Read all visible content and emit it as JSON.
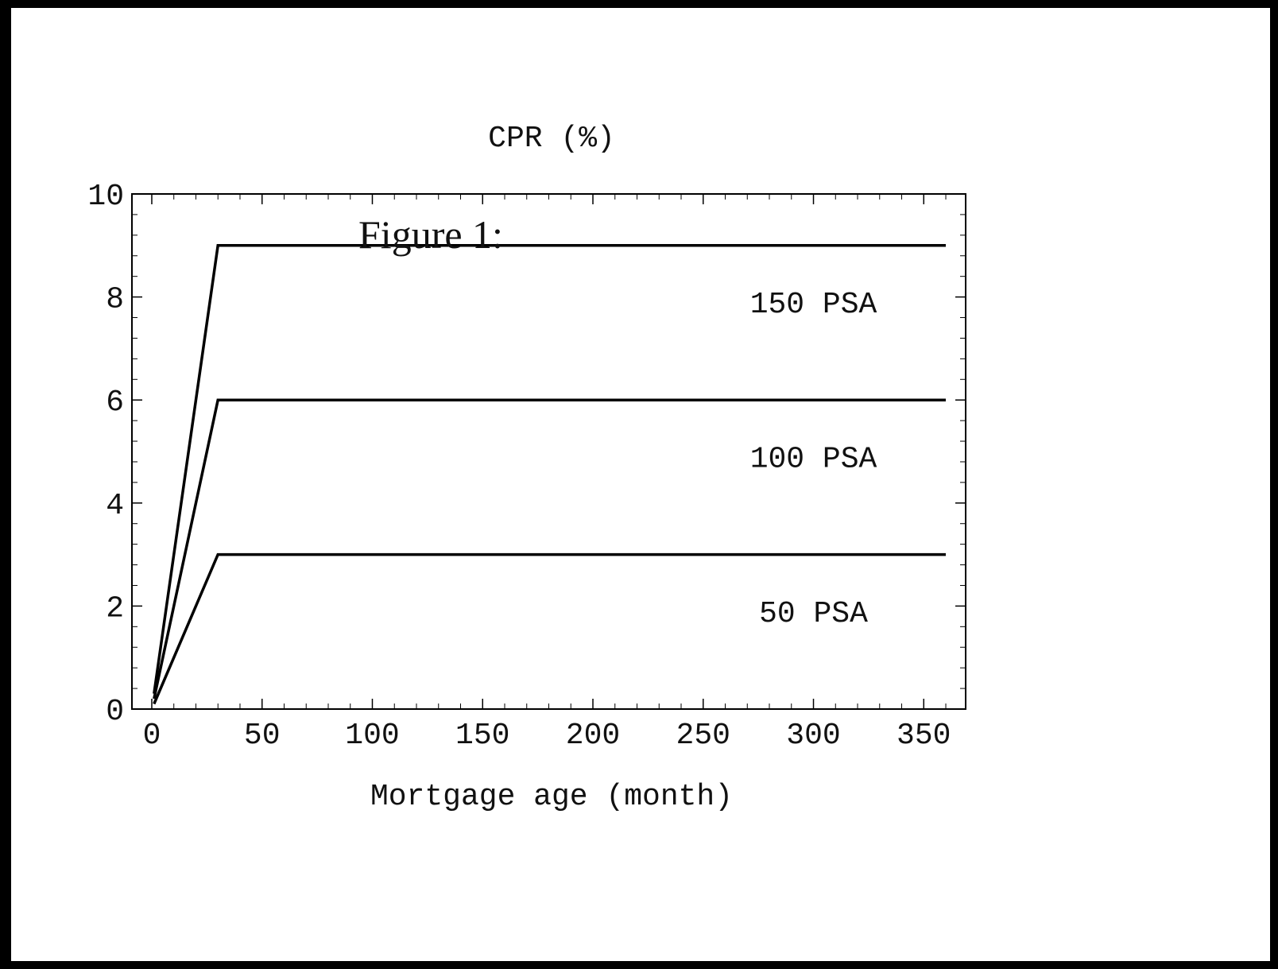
{
  "chart_data": {
    "type": "line",
    "title": "Figure 1:",
    "ylabel": "CPR (%)",
    "xlabel": "Mortgage age (month)",
    "xlim": [
      -9,
      369
    ],
    "ylim": [
      0,
      10
    ],
    "x_ticks": [
      0,
      50,
      100,
      150,
      200,
      250,
      300,
      350
    ],
    "y_ticks": [
      0,
      2,
      4,
      6,
      8,
      10
    ],
    "grid": false,
    "line_color": "#000000",
    "series": [
      {
        "name": "150 PSA",
        "x": [
          1,
          30,
          360
        ],
        "y": [
          0.3,
          9,
          9
        ]
      },
      {
        "name": "100 PSA",
        "x": [
          1,
          30,
          360
        ],
        "y": [
          0.2,
          6,
          6
        ]
      },
      {
        "name": "50 PSA",
        "x": [
          1,
          30,
          360
        ],
        "y": [
          0.1,
          3,
          3
        ]
      }
    ]
  }
}
